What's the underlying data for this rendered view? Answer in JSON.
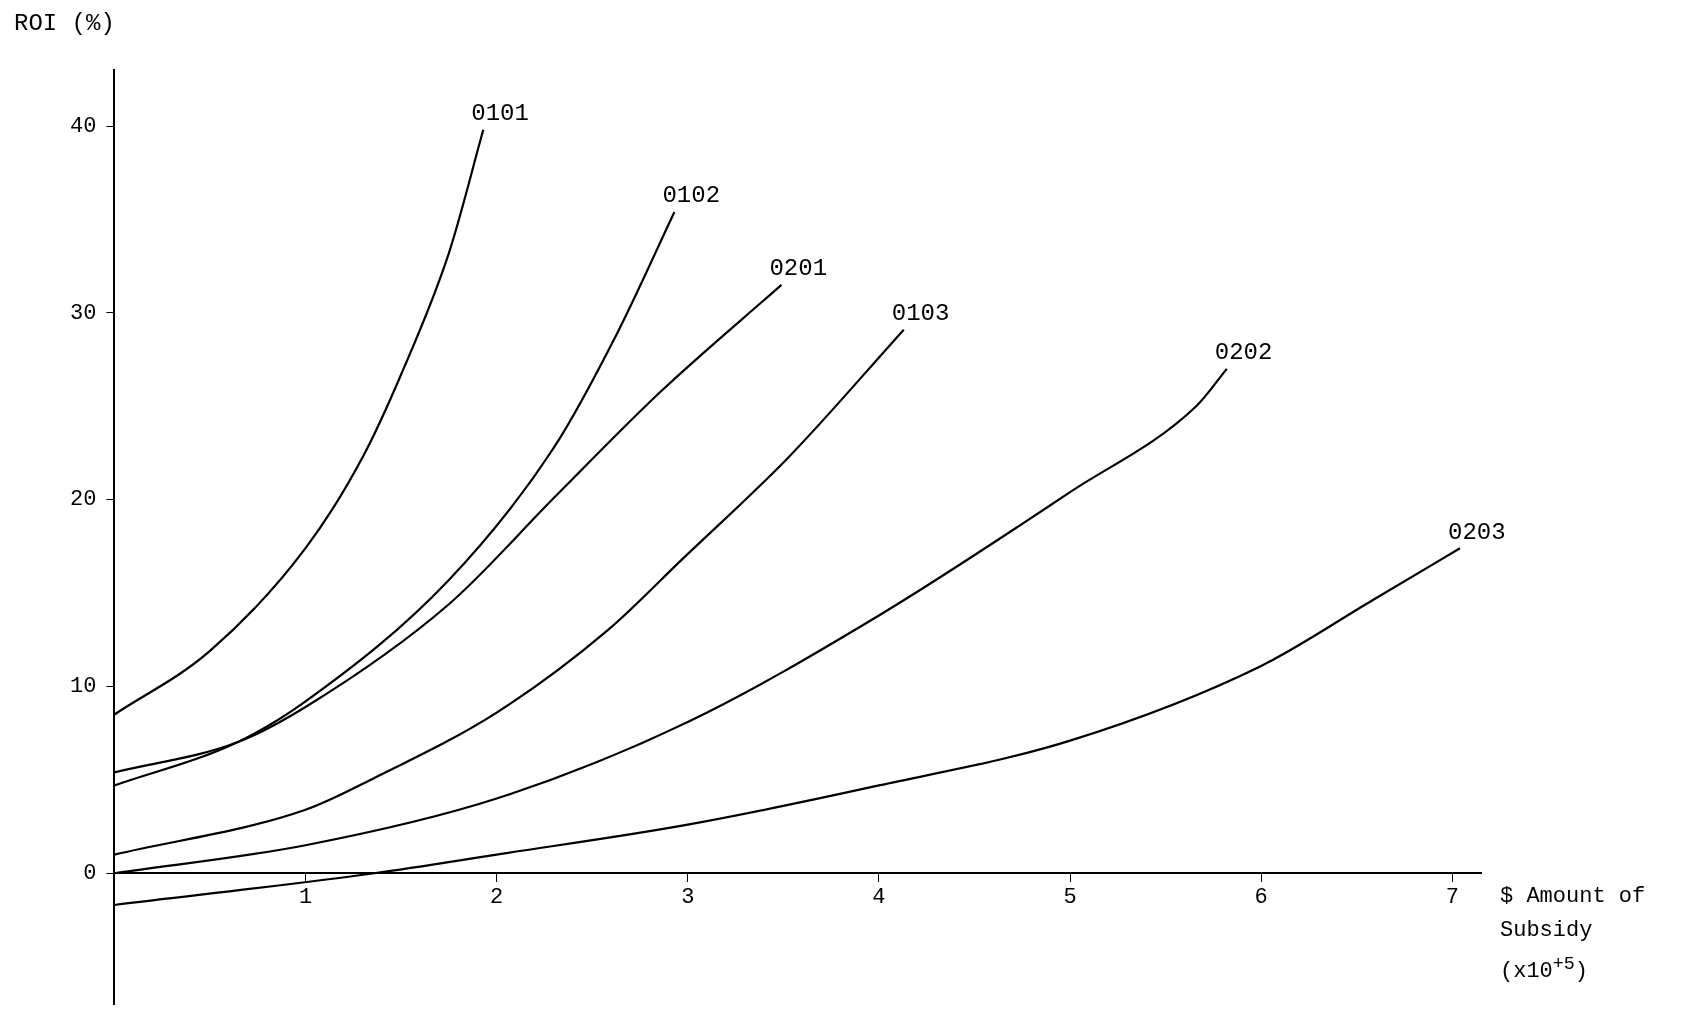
{
  "chart_data": {
    "type": "line",
    "xlabel": "$ Amount of Subsidy (x10$^{+5}$)",
    "ylabel": "ROI (%)",
    "xlim": [
      0,
      7.15
    ],
    "ylim": [
      -7,
      43
    ],
    "xticks": [
      1,
      2,
      3,
      4,
      5,
      6,
      7
    ],
    "yticks": [
      0,
      10,
      20,
      30,
      40
    ],
    "grid": false,
    "legend": false,
    "marker": "none",
    "line_style": "solid",
    "series": [
      {
        "name": "0101",
        "color": "#000000",
        "x": [
          0,
          0.5,
          1,
          1.3,
          1.5,
          1.75,
          1.93
        ],
        "values": [
          8.5,
          11.9,
          17.4,
          22.3,
          26.7,
          33.2,
          39.8
        ]
      },
      {
        "name": "0102",
        "color": "#000000",
        "x": [
          0,
          0.64,
          1,
          1.75,
          2.3,
          2.63,
          2.93
        ],
        "values": [
          4.7,
          7,
          9.2,
          15.7,
          22.8,
          28.9,
          35.4
        ]
      },
      {
        "name": "0201",
        "color": "#000000",
        "x": [
          0,
          0.64,
          1,
          1.75,
          2.3,
          2.86,
          3.49
        ],
        "values": [
          5.4,
          7,
          8.9,
          14.4,
          20.1,
          25.8,
          31.5
        ]
      },
      {
        "name": "0103",
        "color": "#000000",
        "x": [
          0,
          1,
          1.36,
          2,
          2.58,
          2.97,
          3.53,
          4.13
        ],
        "values": [
          1,
          3.4,
          5.1,
          8.6,
          13,
          16.8,
          22.3,
          29.1
        ]
      },
      {
        "name": "0202",
        "color": "#000000",
        "x": [
          0,
          1,
          2,
          3,
          4,
          5,
          5.66,
          5.82
        ],
        "values": [
          0,
          1.5,
          4,
          8.1,
          13.8,
          20.4,
          25,
          27
        ]
      },
      {
        "name": "0203",
        "color": "#000000",
        "x": [
          0,
          1.36,
          2,
          3,
          4,
          5,
          6,
          6.58,
          7.04
        ],
        "values": [
          -1.7,
          0,
          1,
          2.6,
          4.7,
          7.1,
          11.1,
          14.6,
          17.4
        ]
      }
    ]
  }
}
